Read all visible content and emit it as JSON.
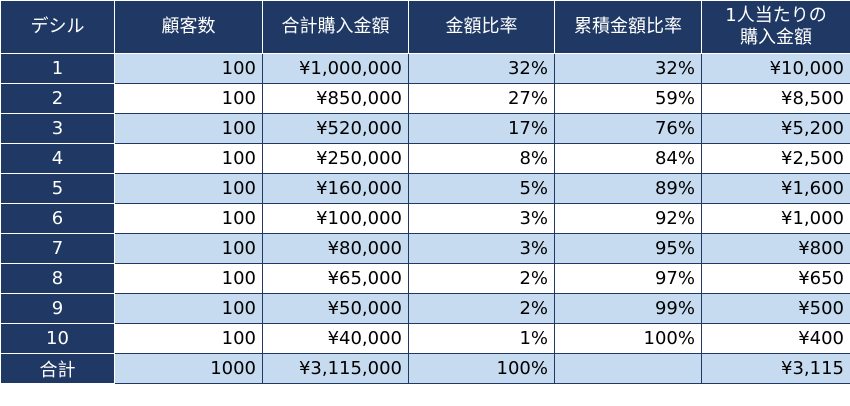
{
  "headers": [
    "デシル",
    "顧客数",
    "合計購入金額",
    "金額比率",
    "累積金額比率",
    "1人当たりの購入金額"
  ],
  "header_lines": {
    "col5_line1": "1人当たりの",
    "col5_line2": "購入金額"
  },
  "rows": [
    {
      "decile": "1",
      "customers": "100",
      "total": "¥1,000,000",
      "ratio": "32%",
      "cumulative": "32%",
      "per_person": "¥10,000"
    },
    {
      "decile": "2",
      "customers": "100",
      "total": "¥850,000",
      "ratio": "27%",
      "cumulative": "59%",
      "per_person": "¥8,500"
    },
    {
      "decile": "3",
      "customers": "100",
      "total": "¥520,000",
      "ratio": "17%",
      "cumulative": "76%",
      "per_person": "¥5,200"
    },
    {
      "decile": "4",
      "customers": "100",
      "total": "¥250,000",
      "ratio": "8%",
      "cumulative": "84%",
      "per_person": "¥2,500"
    },
    {
      "decile": "5",
      "customers": "100",
      "total": "¥160,000",
      "ratio": "5%",
      "cumulative": "89%",
      "per_person": "¥1,600"
    },
    {
      "decile": "6",
      "customers": "100",
      "total": "¥100,000",
      "ratio": "3%",
      "cumulative": "92%",
      "per_person": "¥1,000"
    },
    {
      "decile": "7",
      "customers": "100",
      "total": "¥80,000",
      "ratio": "3%",
      "cumulative": "95%",
      "per_person": "¥800"
    },
    {
      "decile": "8",
      "customers": "100",
      "total": "¥65,000",
      "ratio": "2%",
      "cumulative": "97%",
      "per_person": "¥650"
    },
    {
      "decile": "9",
      "customers": "100",
      "total": "¥50,000",
      "ratio": "2%",
      "cumulative": "99%",
      "per_person": "¥500"
    },
    {
      "decile": "10",
      "customers": "100",
      "total": "¥40,000",
      "ratio": "1%",
      "cumulative": "100%",
      "per_person": "¥400"
    }
  ],
  "total_row": {
    "label": "合計",
    "customers": "1000",
    "total": "¥3,115,000",
    "ratio": "100%",
    "cumulative": "",
    "per_person": "¥3,115"
  },
  "colors": {
    "header_bg": "#1f3864",
    "band_blue": "#c6dbef",
    "band_white": "#ffffff"
  }
}
